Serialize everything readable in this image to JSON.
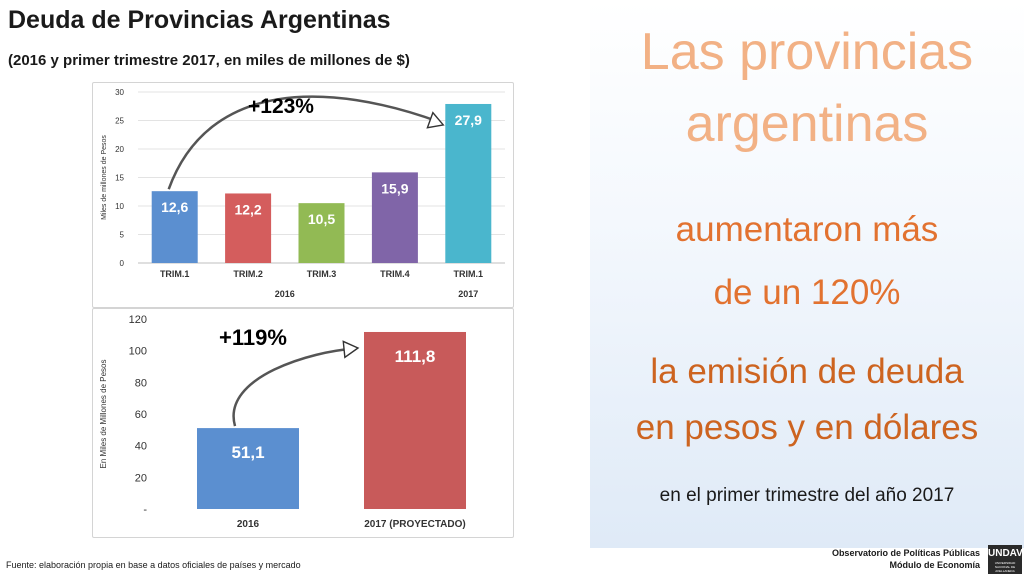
{
  "title": "Deuda de Provincias Argentinas",
  "subtitle": "(2016 y primer trimestre 2017, en miles de millones de $)",
  "chart_data": [
    {
      "type": "bar",
      "title": "",
      "ylabel": "Miles de millones de Pesos",
      "ylim": [
        0,
        30
      ],
      "yticks": [
        0,
        5,
        10,
        15,
        20,
        25,
        30
      ],
      "grid": true,
      "categories": [
        "TRIM.1",
        "TRIM.2",
        "TRIM.3",
        "TRIM.4",
        "TRIM.1"
      ],
      "groups": [
        "2016",
        "2017"
      ],
      "values": [
        12.6,
        12.2,
        10.5,
        15.9,
        27.9
      ],
      "value_labels": [
        "12,6",
        "12,2",
        "10,5",
        "15,9",
        "27,9"
      ],
      "bar_colors": [
        "#5b8fd0",
        "#d45d5d",
        "#92ba54",
        "#8065a8",
        "#4ab6cd"
      ],
      "annotation": "+123%"
    },
    {
      "type": "bar",
      "title": "",
      "ylabel": "En Miles de Millones de Pesos",
      "ylim": [
        0,
        120
      ],
      "ytick_labels": [
        "-",
        "20",
        "40",
        "60",
        "80",
        "100",
        "120"
      ],
      "grid": false,
      "categories": [
        "2016",
        "2017 (PROYECTADO)"
      ],
      "values": [
        51.1,
        111.8
      ],
      "value_labels": [
        "51,1",
        "111,8"
      ],
      "bar_colors": [
        "#5b8fd0",
        "#c85a5a"
      ],
      "annotation": "+119%"
    }
  ],
  "footer": "Fuente: elaboración propia en base a datos oficiales de países y mercado",
  "headline": {
    "line1": "Las provincias",
    "line2": "argentinas",
    "line3": "aumentaron más",
    "line4": "de un 120%",
    "line5": "la emisión de deuda",
    "line6": "en pesos y en dólares",
    "line7": "en el primer trimestre del año 2017"
  },
  "organization": {
    "line1": "Observatorio de Políticas Públicas",
    "line2": "Módulo de Economía"
  },
  "logo": {
    "main": "UNDAV",
    "sub": "UNIVERSIDAD NACIONAL DE AVELLANEDA"
  }
}
